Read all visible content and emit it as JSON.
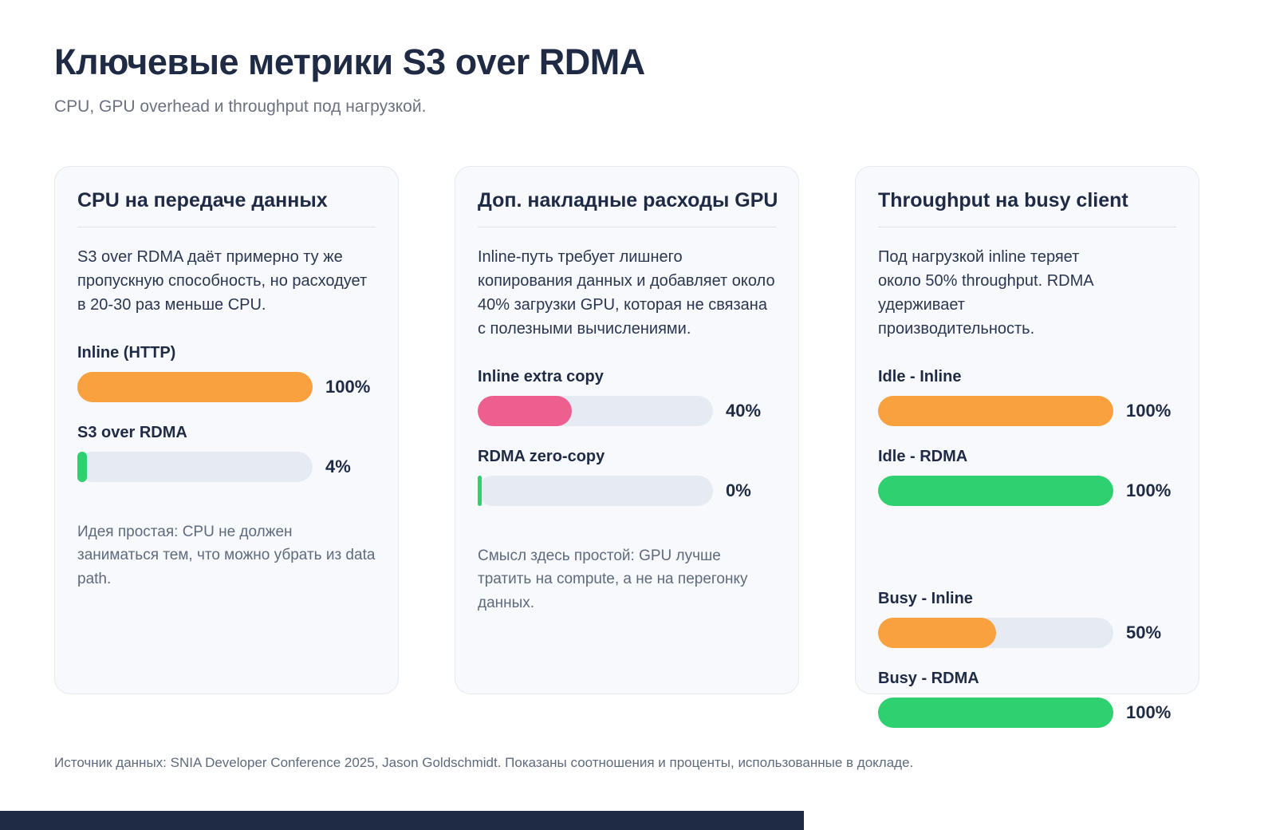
{
  "page": {
    "title": "Ключевые метрики S3 over RDMA",
    "subtitle": "CPU, GPU overhead и throughput под нагрузкой.",
    "footnote": "Источник данных: SNIA Developer Conference 2025, Jason Goldschmidt. Показаны соотношения и проценты, использованные в докладе."
  },
  "colors": {
    "navy": "#1f2a44",
    "gray_text": "#5f6b7d",
    "orange": "#f9a03f",
    "green": "#2fd06f",
    "pink": "#ec5f8e",
    "track": "#e6ebf3",
    "card_bg": "#f7f9fc",
    "card_border": "#e5eaf2"
  },
  "cards": [
    {
      "title": "CPU на передаче данных",
      "description": "S3 over RDMA даёт примерно ту же пропускную способность, но расходует в 20-30 раз меньше CPU.",
      "bars": [
        {
          "label": "Inline (HTTP)",
          "value": "100%",
          "percent": 100,
          "color": "orange"
        },
        {
          "label": "S3 over RDMA",
          "value": "4%",
          "percent": 4,
          "color": "green"
        }
      ],
      "note": "Идея простая: CPU не должен заниматься тем, что можно убрать из data path."
    },
    {
      "title": "Доп. накладные расходы GPU",
      "description": "Inline-путь требует лишнего копирования данных и добавляет около 40% загрузки GPU, которая не связана с полезными вычислениями.",
      "bars": [
        {
          "label": "Inline extra copy",
          "value": "40%",
          "percent": 40,
          "color": "pink"
        },
        {
          "label": "RDMA zero-copy",
          "value": "0%",
          "percent": 0,
          "color": "green"
        }
      ],
      "note": "Смысл здесь простой: GPU лучше тратить на compute, а не на перегонку данных."
    },
    {
      "title": "Throughput на busy client",
      "description": "Под нагрузкой inline теряет около 50% throughput. RDMA удерживает производительность.",
      "bars": [
        {
          "label": "Idle - Inline",
          "value": "100%",
          "percent": 100,
          "color": "orange"
        },
        {
          "label": "Idle - RDMA",
          "value": "100%",
          "percent": 100,
          "color": "green"
        },
        {
          "label": "Busy - Inline",
          "value": "50%",
          "percent": 50,
          "color": "orange"
        },
        {
          "label": "Busy - RDMA",
          "value": "100%",
          "percent": 100,
          "color": "green"
        }
      ],
      "note": ""
    }
  ],
  "chart_data": [
    {
      "type": "bar",
      "title": "CPU на передаче данных",
      "categories": [
        "Inline (HTTP)",
        "S3 over RDMA"
      ],
      "values": [
        100,
        4
      ],
      "unit": "%",
      "orientation": "horizontal",
      "xlim": [
        0,
        100
      ],
      "grid": false,
      "bar_colors": [
        "#f9a03f",
        "#2fd06f"
      ]
    },
    {
      "type": "bar",
      "title": "Доп. накладные расходы GPU",
      "categories": [
        "Inline extra copy",
        "RDMA zero-copy"
      ],
      "values": [
        40,
        0
      ],
      "unit": "%",
      "orientation": "horizontal",
      "xlim": [
        0,
        100
      ],
      "grid": false,
      "bar_colors": [
        "#ec5f8e",
        "#2fd06f"
      ]
    },
    {
      "type": "bar",
      "title": "Throughput на busy client",
      "categories": [
        "Idle - Inline",
        "Idle - RDMA",
        "Busy - Inline",
        "Busy - RDMA"
      ],
      "values": [
        100,
        100,
        50,
        100
      ],
      "unit": "%",
      "orientation": "horizontal",
      "xlim": [
        0,
        100
      ],
      "grid": false,
      "bar_colors": [
        "#f9a03f",
        "#2fd06f",
        "#f9a03f",
        "#2fd06f"
      ]
    }
  ]
}
